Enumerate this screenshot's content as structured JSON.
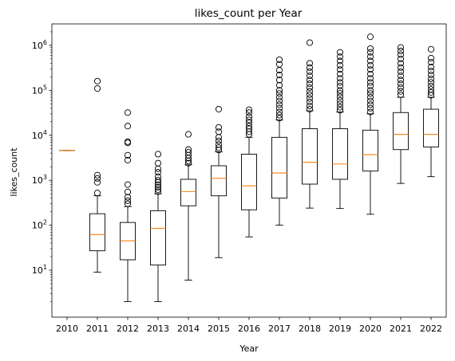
{
  "chart_data": {
    "type": "box",
    "title": "likes_count per Year",
    "xlabel": "Year",
    "ylabel": "likes_count",
    "y_scale": "log",
    "ylim": [
      0.9,
      3000000
    ],
    "categories": [
      "2010",
      "2011",
      "2012",
      "2013",
      "2014",
      "2015",
      "2016",
      "2017",
      "2018",
      "2019",
      "2020",
      "2021",
      "2022"
    ],
    "y_ticks": [
      {
        "base": "10",
        "exp": "1",
        "value": 10
      },
      {
        "base": "10",
        "exp": "2",
        "value": 100
      },
      {
        "base": "10",
        "exp": "3",
        "value": 1000
      },
      {
        "base": "10",
        "exp": "4",
        "value": 10000
      },
      {
        "base": "10",
        "exp": "5",
        "value": 100000
      },
      {
        "base": "10",
        "exp": "6",
        "value": 1000000
      }
    ],
    "boxes": [
      {
        "whislo": 4600,
        "q1": 4600,
        "med": 4600,
        "q3": 4600,
        "whishi": 4600,
        "fliers": []
      },
      {
        "whislo": 9,
        "q1": 27,
        "med": 62,
        "q3": 180,
        "whishi": 450,
        "fliers": [
          520,
          900,
          1100,
          1300,
          110000,
          160000
        ]
      },
      {
        "whislo": 2,
        "q1": 17,
        "med": 45,
        "q3": 115,
        "whishi": 260,
        "fliers": [
          300,
          350,
          420,
          550,
          800,
          2800,
          3600,
          6800,
          7200,
          16000,
          32000
        ]
      },
      {
        "whislo": 2,
        "q1": 13,
        "med": 85,
        "q3": 210,
        "whishi": 500,
        "fliers": [
          560,
          620,
          700,
          800,
          900,
          1000,
          1200,
          1500,
          1800,
          2400,
          3800
        ]
      },
      {
        "whislo": 6,
        "q1": 270,
        "med": 560,
        "q3": 1050,
        "whishi": 2200,
        "fliers": [
          2400,
          2700,
          3100,
          3600,
          4200,
          4800,
          10500
        ]
      },
      {
        "whislo": 19,
        "q1": 450,
        "med": 1100,
        "q3": 2100,
        "whishi": 4300,
        "fliers": [
          4700,
          5300,
          6200,
          7500,
          9000,
          12000,
          15000,
          38000
        ]
      },
      {
        "whislo": 55,
        "q1": 220,
        "med": 750,
        "q3": 3800,
        "whishi": 9000,
        "fliers": [
          10500,
          12000,
          14000,
          16000,
          19000,
          22000,
          26000,
          32000,
          37000
        ]
      },
      {
        "whislo": 100,
        "q1": 400,
        "med": 1450,
        "q3": 9000,
        "whishi": 22000,
        "fliers": [
          24000,
          28000,
          33000,
          40000,
          48000,
          58000,
          70000,
          85000,
          100000,
          130000,
          170000,
          220000,
          280000,
          380000,
          480000
        ]
      },
      {
        "whislo": 240,
        "q1": 820,
        "med": 2500,
        "q3": 14000,
        "whishi": 35000,
        "fliers": [
          38000,
          45000,
          55000,
          66000,
          80000,
          95000,
          115000,
          140000,
          170000,
          210000,
          260000,
          320000,
          400000,
          1150000
        ]
      },
      {
        "whislo": 235,
        "q1": 1050,
        "med": 2300,
        "q3": 14000,
        "whishi": 33000,
        "fliers": [
          36000,
          42000,
          50000,
          60000,
          72000,
          86000,
          100000,
          125000,
          150000,
          185000,
          230000,
          290000,
          360000,
          450000,
          560000,
          700000
        ]
      },
      {
        "whislo": 175,
        "q1": 1600,
        "med": 3700,
        "q3": 13000,
        "whishi": 30000,
        "fliers": [
          33000,
          40000,
          48000,
          58000,
          70000,
          85000,
          100000,
          125000,
          150000,
          185000,
          230000,
          290000,
          360000,
          450000,
          560000,
          700000,
          850000,
          1550000
        ]
      },
      {
        "whislo": 850,
        "q1": 4800,
        "med": 10500,
        "q3": 32000,
        "whishi": 70000,
        "fliers": [
          80000,
          95000,
          115000,
          140000,
          170000,
          210000,
          260000,
          320000,
          400000,
          500000,
          620000,
          750000,
          900000
        ]
      },
      {
        "whislo": 1200,
        "q1": 5500,
        "med": 10500,
        "q3": 38000,
        "whishi": 70000,
        "fliers": [
          78000,
          90000,
          105000,
          125000,
          150000,
          180000,
          220000,
          270000,
          330000,
          420000,
          520000,
          820000
        ]
      }
    ],
    "colors": {
      "box": "#000000",
      "median": "#ff7f0e",
      "flier": "#000000",
      "background": "#ffffff"
    },
    "grid": false,
    "legend": "none"
  }
}
